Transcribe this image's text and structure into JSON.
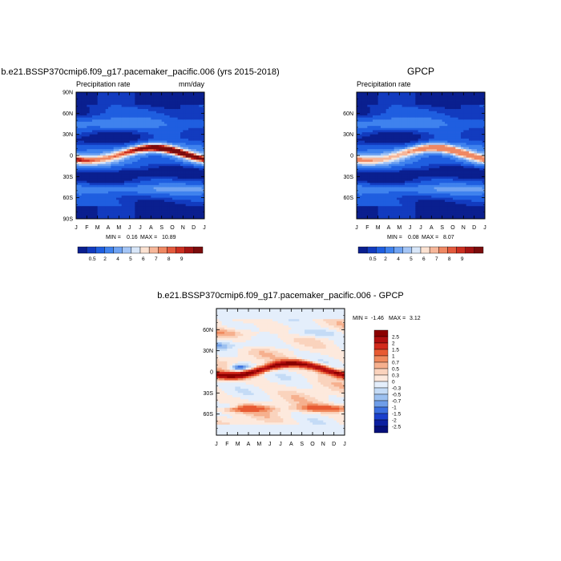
{
  "chart_data": [
    {
      "type": "heatmap",
      "title": "b.e21.BSSP370cmip6.f09_g17.pacemaker_pacific.006 (yrs 2015-2018)",
      "left_label": "Precipitation rate",
      "units": "mm/day",
      "x_ticks": [
        "J",
        "F",
        "M",
        "A",
        "M",
        "J",
        "J",
        "A",
        "S",
        "O",
        "N",
        "D",
        "J"
      ],
      "y_ticks": [
        "90N",
        "60N",
        "30N",
        "0",
        "30S",
        "60S",
        "90S"
      ],
      "ylim": [
        -90,
        90
      ],
      "min_label": "MIN =",
      "min_value": "0.16",
      "max_label": "MAX =",
      "max_value": "10.89",
      "colorbar_labels": [
        "0.5",
        "2",
        "4",
        "5",
        "6",
        "7",
        "8",
        "9"
      ],
      "colorbar_colors": [
        "#0a1f8f",
        "#123bbf",
        "#1f5ee0",
        "#3f82ee",
        "#6fa3f2",
        "#a4c5f5",
        "#d8e6f8",
        "#fbe2d2",
        "#f6b79a",
        "#ef8863",
        "#e45a3d",
        "#cc2f21",
        "#a31312",
        "#7a0c0c"
      ],
      "max_intensity": 10.89,
      "itcz_amplitude": 1.0
    },
    {
      "type": "heatmap",
      "title": "GPCP",
      "left_label": "Precipitation rate",
      "x_ticks": [
        "J",
        "F",
        "M",
        "A",
        "M",
        "J",
        "J",
        "A",
        "S",
        "O",
        "N",
        "D",
        "J"
      ],
      "y_ticks": [
        "60N",
        "30N",
        "0",
        "30S",
        "60S"
      ],
      "ylim": [
        -90,
        90
      ],
      "min_label": "MIN =",
      "min_value": "0.08",
      "max_label": "MAX =",
      "max_value": "8.07",
      "colorbar_labels": [
        "0.5",
        "2",
        "4",
        "5",
        "6",
        "7",
        "8",
        "9"
      ],
      "colorbar_colors": [
        "#0a1f8f",
        "#123bbf",
        "#1f5ee0",
        "#3f82ee",
        "#6fa3f2",
        "#a4c5f5",
        "#d8e6f8",
        "#fbe2d2",
        "#f6b79a",
        "#ef8863",
        "#e45a3d",
        "#cc2f21",
        "#a31312",
        "#7a0c0c"
      ],
      "max_intensity": 8.07,
      "itcz_amplitude": 0.8
    },
    {
      "type": "heatmap",
      "title": "b.e21.BSSP370cmip6.f09_g17.pacemaker_pacific.006 - GPCP",
      "x_ticks": [
        "J",
        "F",
        "M",
        "A",
        "M",
        "J",
        "J",
        "A",
        "S",
        "O",
        "N",
        "D",
        "J"
      ],
      "y_ticks": [
        "60N",
        "30N",
        "0",
        "30S",
        "60S"
      ],
      "ylim": [
        -90,
        90
      ],
      "min_label": "MIN =",
      "min_value": "-1.46",
      "max_label": "MAX =",
      "max_value": "3.12",
      "colorbar_labels": [
        "2.5",
        "2",
        "1.5",
        "1",
        "0.7",
        "0.5",
        "0.3",
        "0",
        "-0.3",
        "-0.5",
        "-0.7",
        "-1",
        "-1.5",
        "-2",
        "-2.5"
      ],
      "colorbar_colors": [
        "#8b0000",
        "#b00f0f",
        "#d22a1c",
        "#e85a32",
        "#f08a5e",
        "#f6b08e",
        "#fad3bd",
        "#fde9dd",
        "#e4eefb",
        "#c4dbf6",
        "#9cc0f0",
        "#6e9de8",
        "#3b6fe0",
        "#1a3fcc",
        "#0b1fa0",
        "#050f7a"
      ]
    }
  ]
}
